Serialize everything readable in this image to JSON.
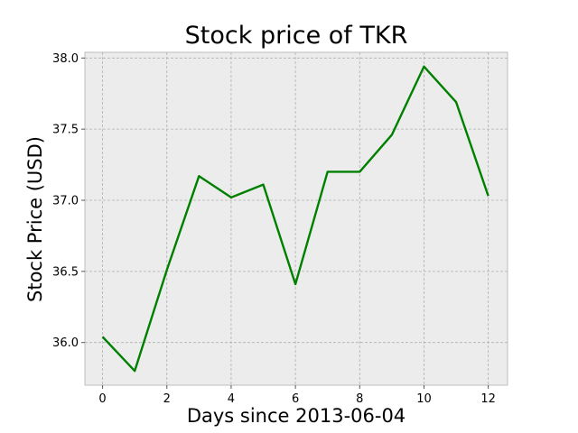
{
  "chart_data": {
    "type": "line",
    "title": "Stock price of TKR",
    "xlabel": "Days since 2013-06-04",
    "ylabel": "Stock Price (USD)",
    "x": [
      0,
      1,
      2,
      3,
      4,
      5,
      6,
      7,
      8,
      9,
      10,
      11,
      12
    ],
    "series": [
      {
        "values": [
          36.04,
          35.8,
          36.51,
          37.17,
          37.02,
          37.11,
          36.41,
          37.2,
          37.2,
          37.46,
          37.94,
          37.69,
          37.03
        ],
        "color": "#008000"
      }
    ],
    "xlim": [
      -0.55,
      12.6
    ],
    "ylim": [
      35.7,
      38.04
    ],
    "xticks": [
      0,
      2,
      4,
      6,
      8,
      10,
      12
    ],
    "yticks": [
      36.0,
      36.5,
      37.0,
      37.5,
      38.0
    ],
    "ytick_labels": [
      "36.0",
      "36.5",
      "37.0",
      "37.5",
      "38.0"
    ],
    "grid": true,
    "background": "#ececec"
  }
}
